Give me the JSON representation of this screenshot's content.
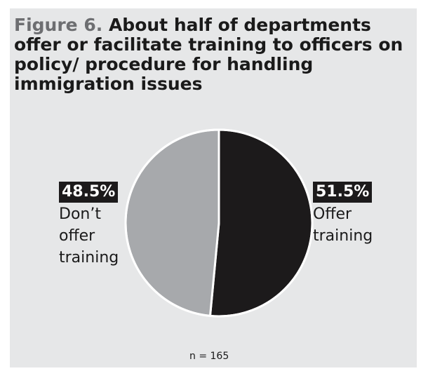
{
  "figure": {
    "label": "Figure 6.",
    "title": "About half of departments offer or facilitate training to officers on policy/ procedure for handling immigration issues",
    "note": "n = 165"
  },
  "chart_data": {
    "type": "pie",
    "slices": [
      {
        "label": "Offer training",
        "value": 51.5,
        "display": "51.5%",
        "color": "#1c1a1b"
      },
      {
        "label": "Don’t offer training",
        "value": 48.5,
        "display": "48.5%",
        "color": "#a7a9ac"
      }
    ]
  },
  "labels": {
    "offer_pct": "51.5%",
    "offer_line1": "Offer",
    "offer_line2": "training",
    "dont_pct": "48.5%",
    "dont_line1": "Don’t",
    "dont_line2": "offer",
    "dont_line3": "training"
  }
}
